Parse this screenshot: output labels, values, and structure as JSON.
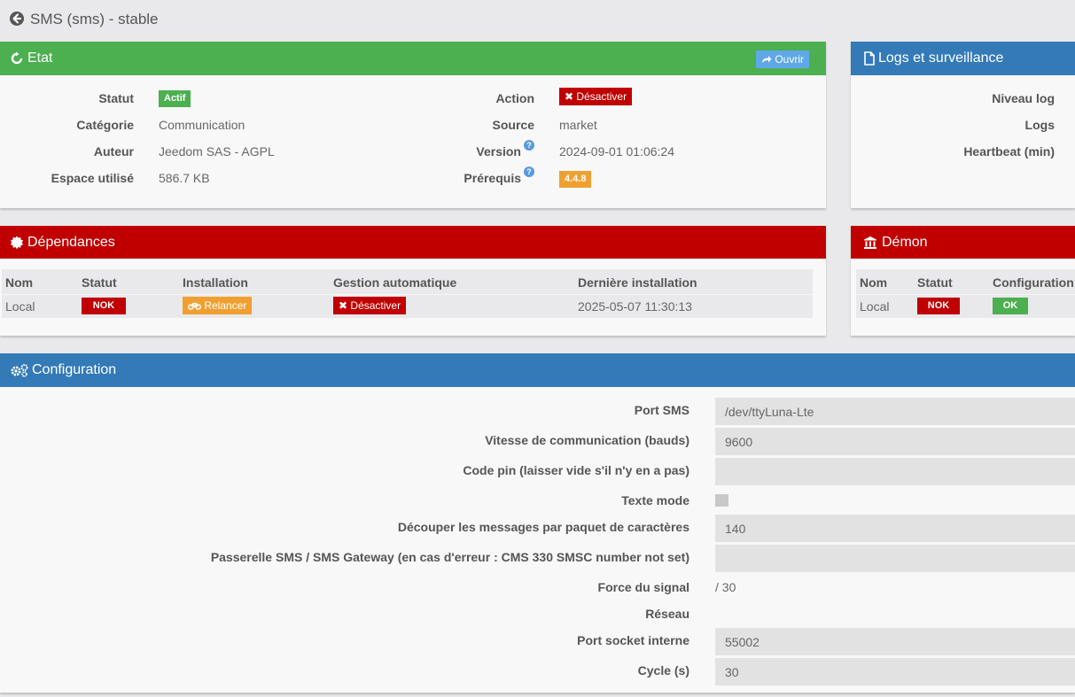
{
  "header": {
    "title": "SMS (sms) - stable"
  },
  "etat": {
    "title": "Etat",
    "open_label": "Ouvrir",
    "statut_label": "Statut",
    "statut_value": "Actif",
    "categorie_label": "Catégorie",
    "categorie_value": "Communication",
    "auteur_label": "Auteur",
    "auteur_value": "Jeedom SAS - AGPL",
    "espace_label": "Espace utilisé",
    "espace_value": "586.7 KB",
    "action_label": "Action",
    "action_value": "Désactiver",
    "source_label": "Source",
    "source_value": "market",
    "version_label": "Version",
    "version_value": "2024-09-01 01:06:24",
    "prerequis_label": "Prérequis",
    "prerequis_value": "4.4.8"
  },
  "logs": {
    "title": "Logs et surveillance",
    "niveau_label": "Niveau log",
    "logs_label": "Logs",
    "heartbeat_label": "Heartbeat (min)"
  },
  "dependances": {
    "title": "Dépendances",
    "columns": [
      "Nom",
      "Statut",
      "Installation",
      "Gestion automatique",
      "Dernière installation"
    ],
    "row": {
      "nom": "Local",
      "statut": "NOK",
      "installation": "Relancer",
      "gestion": "Désactiver",
      "derniere": "2025-05-07 11:30:13"
    }
  },
  "demon": {
    "title": "Démon",
    "columns": [
      "Nom",
      "Statut",
      "Configuration"
    ],
    "row": {
      "nom": "Local",
      "statut": "NOK",
      "configuration": "OK"
    }
  },
  "configuration": {
    "title": "Configuration",
    "port_label": "Port SMS",
    "port_value": "/dev/ttyLuna-Lte",
    "vitesse_label": "Vitesse de communication (bauds)",
    "vitesse_value": "9600",
    "pin_label": "Code pin (laisser vide s'il n'y en a pas)",
    "pin_value": "",
    "texte_label": "Texte mode",
    "decouper_label": "Découper les messages par paquet de caractères",
    "decouper_value": "140",
    "passerelle_label": "Passerelle SMS / SMS Gateway (en cas d'erreur : CMS 330 SMSC number not set)",
    "passerelle_value": "",
    "force_label": "Force du signal",
    "force_value": "/ 30",
    "reseau_label": "Réseau",
    "socket_label": "Port socket interne",
    "socket_value": "55002",
    "cycle_label": "Cycle (s)",
    "cycle_value": "30"
  },
  "colors": {
    "green": "#4caf50",
    "blue": "#337ab7",
    "red": "#c00000",
    "orange": "#f0a030"
  }
}
